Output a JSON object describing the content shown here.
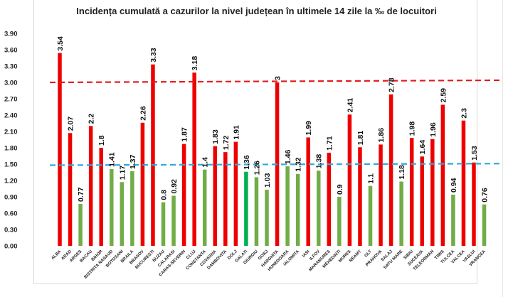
{
  "chart_data": {
    "type": "bar",
    "title": "Incidența cumulată a cazurilor la nivel județean în ultimele 14 zile la ‰ de locuitori",
    "xlabel": "",
    "ylabel": "",
    "ylim": [
      0,
      3.9
    ],
    "yticks": [
      "0.00",
      "0.30",
      "0.60",
      "0.90",
      "1.20",
      "1.50",
      "1.80",
      "2.10",
      "2.40",
      "2.70",
      "3.00",
      "3.30",
      "3.60",
      "3.90"
    ],
    "grid": false,
    "legend": "none",
    "categories": [
      "ALBA",
      "ARAD",
      "ARGES",
      "BACAU",
      "BIHOR",
      "BISTRITA NASAUD",
      "BOTOSANI",
      "BRAILA",
      "BRASOV",
      "BUCURESTI",
      "BUZAU",
      "CALARASI",
      "CARAS-SEVERIN",
      "CLUJ",
      "CONSTANTA",
      "COVASNA",
      "DAMBOVITA",
      "DOLJ",
      "GALATI",
      "GIURGIU",
      "GORJ",
      "HARGHITA",
      "HUNEDOARA",
      "IALOMITA",
      "IASI",
      "ILFOV",
      "MARAMURES",
      "MEHEDINTI",
      "MURES",
      "NEAMT",
      "OLT",
      "PRAHOVA",
      "SALAJ",
      "SATU MARE",
      "SIBIU",
      "SUCEAVA",
      "TELEORMAN",
      "TIMIS",
      "TULCEA",
      "VALCEA",
      "VASLUI",
      "VRANCEA"
    ],
    "values": [
      3.54,
      2.07,
      0.77,
      2.2,
      1.8,
      1.41,
      1.17,
      1.37,
      2.26,
      3.33,
      0.8,
      0.92,
      1.87,
      3.18,
      1.4,
      1.83,
      1.72,
      1.91,
      1.36,
      1.26,
      1.03,
      3,
      1.46,
      1.32,
      1.99,
      1.38,
      1.71,
      0.9,
      2.41,
      1.81,
      1.1,
      1.86,
      2.78,
      1.18,
      1.98,
      1.64,
      1.96,
      2.59,
      0.94,
      2.3,
      1.53,
      0.76
    ],
    "labels": [
      "3.54",
      "2.07",
      "0.77",
      "2.2",
      "1.8",
      "1.41",
      "1.17",
      "1.37",
      "2.26",
      "3.33",
      "0.8",
      "0.92",
      "1.87",
      "3.18",
      "1.4",
      "1.83",
      "1.72",
      "1.91",
      "1.36",
      "1.26",
      "1.03",
      "3",
      "1.46",
      "1.32",
      "1.99",
      "1.38",
      "1.71",
      "0.9",
      "2.41",
      "1.81",
      "1.1",
      "1.86",
      "2.78",
      "1.18",
      "1.98",
      "1.64",
      "1.96",
      "2.59",
      "0.94",
      "2.3",
      "1.53",
      "0.76"
    ],
    "bar_colors": [
      "red",
      "red",
      "green",
      "red",
      "red",
      "green",
      "green",
      "green",
      "red",
      "red",
      "green",
      "green",
      "red",
      "red",
      "green",
      "red",
      "red",
      "red",
      "darkgreen",
      "green",
      "green",
      "red",
      "green",
      "green",
      "red",
      "green",
      "red",
      "green",
      "red",
      "red",
      "green",
      "red",
      "red",
      "green",
      "red",
      "red",
      "red",
      "red",
      "green",
      "red",
      "red",
      "green"
    ],
    "reference_lines": [
      {
        "name": "threshold-3",
        "color": "#e31a1c",
        "style": "dashed",
        "y_start": 3.0,
        "y_end": 3.04
      },
      {
        "name": "threshold-1.5",
        "color": "#2eaadc",
        "style": "dashed",
        "y_start": 1.48,
        "y_end": 1.51
      }
    ]
  },
  "colors": {
    "red": "#ee0000",
    "green": "#70ad47",
    "darkgreen": "#00b050"
  }
}
